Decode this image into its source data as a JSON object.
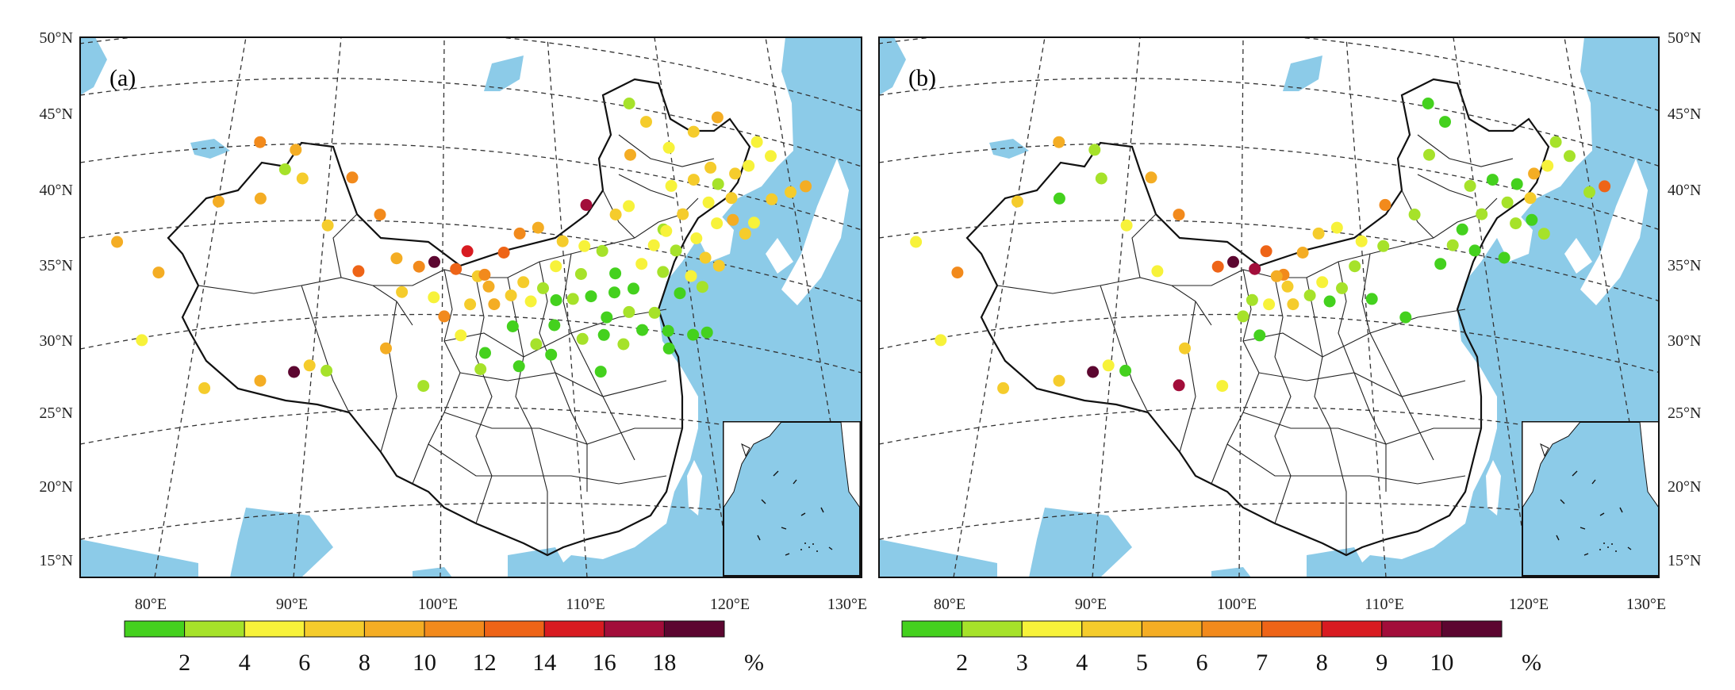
{
  "panels": [
    {
      "label": "(a)",
      "lat_labels_side": "left",
      "colorbar": {
        "colors": [
          "#44d11e",
          "#a6e22a",
          "#f7f23a",
          "#f5cc2c",
          "#f4ad24",
          "#f28a1c",
          "#ee6417",
          "#d81b21",
          "#a20d3a",
          "#5c0630"
        ],
        "tick_labels": [
          "2",
          "4",
          "6",
          "8",
          "10",
          "12",
          "14",
          "16",
          "18"
        ],
        "unit": "%"
      }
    },
    {
      "label": "(b)",
      "lat_labels_side": "right",
      "colorbar": {
        "colors": [
          "#44d11e",
          "#a6e22a",
          "#f7f23a",
          "#f5cc2c",
          "#f4ad24",
          "#f28a1c",
          "#ee6417",
          "#d81b21",
          "#a20d3a",
          "#5c0630"
        ],
        "tick_labels": [
          "2",
          "3",
          "4",
          "5",
          "6",
          "7",
          "8",
          "9",
          "10"
        ],
        "unit": "%"
      }
    }
  ],
  "axes": {
    "lat_labels": [
      "50°N",
      "45°N",
      "40°N",
      "35°N",
      "30°N",
      "25°N",
      "20°N",
      "15°N"
    ],
    "lon_labels": [
      "80°E",
      "90°E",
      "100°E",
      "110°E",
      "120°E",
      "130°E"
    ]
  },
  "colors": {
    "sea": "#8ccbe8",
    "land": "#ffffff",
    "border": "#111111",
    "grid": "#333333"
  },
  "chart_data": [
    {
      "type": "scatter",
      "note_units": "lon °E, lat °N, class index 0-9 on colorbar",
      "points": [
        {
          "lon": 116.3,
          "lat": 47.8,
          "c": 1
        },
        {
          "lon": 117.5,
          "lat": 46.6,
          "c": 3
        },
        {
          "lon": 115.7,
          "lat": 44.3,
          "c": 4
        },
        {
          "lon": 118.6,
          "lat": 42.3,
          "c": 2
        },
        {
          "lon": 120.5,
          "lat": 42.8,
          "c": 3
        },
        {
          "lon": 122.4,
          "lat": 42.6,
          "c": 1
        },
        {
          "lon": 124.0,
          "lat": 43.4,
          "c": 3
        },
        {
          "lon": 121.3,
          "lat": 41.3,
          "c": 2
        },
        {
          "lon": 123.2,
          "lat": 41.7,
          "c": 3
        },
        {
          "lon": 119.1,
          "lat": 40.4,
          "c": 3
        },
        {
          "lon": 117.4,
          "lat": 39.3,
          "c": 1
        },
        {
          "lon": 119.8,
          "lat": 38.8,
          "c": 2
        },
        {
          "lon": 121.6,
          "lat": 39.9,
          "c": 2
        },
        {
          "lon": 122.9,
          "lat": 40.2,
          "c": 4
        },
        {
          "lon": 123.6,
          "lat": 39.3,
          "c": 3
        },
        {
          "lon": 120.2,
          "lat": 37.5,
          "c": 3
        },
        {
          "lon": 118.1,
          "lat": 37.9,
          "c": 1
        },
        {
          "lon": 116.5,
          "lat": 38.2,
          "c": 2
        },
        {
          "lon": 121.1,
          "lat": 37.0,
          "c": 3
        },
        {
          "lon": 118.9,
          "lat": 36.2,
          "c": 2
        },
        {
          "lon": 116.9,
          "lat": 36.4,
          "c": 1
        },
        {
          "lon": 115.4,
          "lat": 36.9,
          "c": 2
        },
        {
          "lon": 117.9,
          "lat": 35.0,
          "c": 0
        },
        {
          "lon": 119.6,
          "lat": 35.5,
          "c": 1
        },
        {
          "lon": 114.6,
          "lat": 35.2,
          "c": 0
        },
        {
          "lon": 113.2,
          "lat": 34.9,
          "c": 0
        },
        {
          "lon": 115.9,
          "lat": 33.6,
          "c": 1
        },
        {
          "lon": 116.7,
          "lat": 32.4,
          "c": 0
        },
        {
          "lon": 114.1,
          "lat": 33.6,
          "c": 1
        },
        {
          "lon": 112.5,
          "lat": 33.2,
          "c": 0
        },
        {
          "lon": 111.5,
          "lat": 34.6,
          "c": 0
        },
        {
          "lon": 110.2,
          "lat": 34.4,
          "c": 1
        },
        {
          "lon": 109.0,
          "lat": 34.3,
          "c": 0
        },
        {
          "lon": 107.2,
          "lat": 34.2,
          "c": 2
        },
        {
          "lon": 105.8,
          "lat": 34.6,
          "c": 3
        },
        {
          "lon": 104.2,
          "lat": 35.2,
          "c": 4
        },
        {
          "lon": 103.4,
          "lat": 35.9,
          "c": 3
        },
        {
          "lon": 101.8,
          "lat": 36.4,
          "c": 6
        },
        {
          "lon": 100.2,
          "lat": 36.9,
          "c": 9
        },
        {
          "lon": 102.6,
          "lat": 37.6,
          "c": 7
        },
        {
          "lon": 103.9,
          "lat": 36.0,
          "c": 5
        },
        {
          "lon": 105.3,
          "lat": 37.5,
          "c": 6
        },
        {
          "lon": 106.5,
          "lat": 38.8,
          "c": 5
        },
        {
          "lon": 107.9,
          "lat": 39.2,
          "c": 4
        },
        {
          "lon": 109.7,
          "lat": 38.3,
          "c": 3
        },
        {
          "lon": 111.3,
          "lat": 38.0,
          "c": 2
        },
        {
          "lon": 112.6,
          "lat": 37.7,
          "c": 1
        },
        {
          "lon": 113.4,
          "lat": 36.2,
          "c": 0
        },
        {
          "lon": 110.9,
          "lat": 36.1,
          "c": 1
        },
        {
          "lon": 109.1,
          "lat": 36.6,
          "c": 2
        },
        {
          "lon": 108.1,
          "lat": 35.1,
          "c": 1
        },
        {
          "lon": 106.7,
          "lat": 35.5,
          "c": 3
        },
        {
          "lon": 104.6,
          "lat": 34.0,
          "c": 4
        },
        {
          "lon": 102.9,
          "lat": 34.0,
          "c": 3
        },
        {
          "lon": 101.1,
          "lat": 33.2,
          "c": 5
        },
        {
          "lon": 100.3,
          "lat": 34.5,
          "c": 2
        },
        {
          "lon": 99.1,
          "lat": 36.6,
          "c": 5
        },
        {
          "lon": 98.0,
          "lat": 34.9,
          "c": 3
        },
        {
          "lon": 97.4,
          "lat": 37.2,
          "c": 4
        },
        {
          "lon": 95.8,
          "lat": 40.2,
          "c": 5
        },
        {
          "lon": 94.7,
          "lat": 36.4,
          "c": 6
        },
        {
          "lon": 93.2,
          "lat": 42.8,
          "c": 5
        },
        {
          "lon": 91.9,
          "lat": 39.6,
          "c": 3
        },
        {
          "lon": 89.2,
          "lat": 42.9,
          "c": 3
        },
        {
          "lon": 88.1,
          "lat": 44.9,
          "c": 4
        },
        {
          "lon": 86.2,
          "lat": 41.7,
          "c": 4
        },
        {
          "lon": 84.9,
          "lat": 45.6,
          "c": 5
        },
        {
          "lon": 87.6,
          "lat": 43.6,
          "c": 1
        },
        {
          "lon": 82.9,
          "lat": 41.7,
          "c": 4
        },
        {
          "lon": 79.9,
          "lat": 37.1,
          "c": 4
        },
        {
          "lon": 75.9,
          "lat": 39.5,
          "c": 4
        },
        {
          "lon": 80.1,
          "lat": 32.5,
          "c": 2
        },
        {
          "lon": 85.2,
          "lat": 28.9,
          "c": 3
        },
        {
          "lon": 88.9,
          "lat": 29.2,
          "c": 4
        },
        {
          "lon": 91.1,
          "lat": 29.7,
          "c": 9
        },
        {
          "lon": 92.1,
          "lat": 30.1,
          "c": 3
        },
        {
          "lon": 93.3,
          "lat": 29.7,
          "c": 1
        },
        {
          "lon": 97.2,
          "lat": 31.1,
          "c": 4
        },
        {
          "lon": 99.9,
          "lat": 28.5,
          "c": 1
        },
        {
          "lon": 102.3,
          "lat": 31.9,
          "c": 2
        },
        {
          "lon": 104.0,
          "lat": 30.7,
          "c": 0
        },
        {
          "lon": 105.9,
          "lat": 32.5,
          "c": 0
        },
        {
          "lon": 107.5,
          "lat": 31.3,
          "c": 1
        },
        {
          "lon": 108.8,
          "lat": 32.6,
          "c": 0
        },
        {
          "lon": 110.7,
          "lat": 31.7,
          "c": 1
        },
        {
          "lon": 112.2,
          "lat": 32.0,
          "c": 0
        },
        {
          "lon": 113.5,
          "lat": 31.4,
          "c": 1
        },
        {
          "lon": 114.9,
          "lat": 32.4,
          "c": 0
        },
        {
          "lon": 116.6,
          "lat": 31.2,
          "c": 0
        },
        {
          "lon": 118.4,
          "lat": 32.2,
          "c": 0
        },
        {
          "lon": 119.4,
          "lat": 32.4,
          "c": 0
        },
        {
          "lon": 111.8,
          "lat": 29.5,
          "c": 0
        },
        {
          "lon": 117.6,
          "lat": 39.2,
          "c": 2
        },
        {
          "lon": 108.5,
          "lat": 30.6,
          "c": 0
        },
        {
          "lon": 106.3,
          "lat": 29.8,
          "c": 0
        },
        {
          "lon": 103.7,
          "lat": 29.6,
          "c": 1
        },
        {
          "lon": 119.0,
          "lat": 44.9,
          "c": 2
        },
        {
          "lon": 121.4,
          "lat": 46.1,
          "c": 3
        },
        {
          "lon": 125.3,
          "lat": 44.0,
          "c": 2
        },
        {
          "lon": 126.6,
          "lat": 45.7,
          "c": 2
        },
        {
          "lon": 124.5,
          "lat": 40.1,
          "c": 2
        },
        {
          "lon": 126.4,
          "lat": 41.8,
          "c": 3
        },
        {
          "lon": 122.1,
          "lat": 43.7,
          "c": 3
        },
        {
          "lon": 111.7,
          "lat": 40.8,
          "c": 8
        },
        {
          "lon": 123.8,
          "lat": 47.2,
          "c": 4
        },
        {
          "lon": 127.4,
          "lat": 44.8,
          "c": 2
        },
        {
          "lon": 128.1,
          "lat": 42.4,
          "c": 3
        },
        {
          "lon": 129.5,
          "lat": 42.9,
          "c": 4
        },
        {
          "lon": 113.9,
          "lat": 40.2,
          "c": 3
        },
        {
          "lon": 115.0,
          "lat": 40.8,
          "c": 2
        }
      ]
    },
    {
      "type": "scatter",
      "note_units": "lon °E, lat °N, class index 0-9 on colorbar",
      "points": [
        {
          "lon": 117.5,
          "lat": 46.6,
          "c": 0
        },
        {
          "lon": 116.3,
          "lat": 47.8,
          "c": 0
        },
        {
          "lon": 115.7,
          "lat": 44.3,
          "c": 1
        },
        {
          "lon": 118.6,
          "lat": 42.3,
          "c": 1
        },
        {
          "lon": 120.5,
          "lat": 42.8,
          "c": 0
        },
        {
          "lon": 122.4,
          "lat": 42.6,
          "c": 0
        },
        {
          "lon": 124.0,
          "lat": 43.4,
          "c": 4
        },
        {
          "lon": 125.3,
          "lat": 44.0,
          "c": 2
        },
        {
          "lon": 126.6,
          "lat": 45.7,
          "c": 1
        },
        {
          "lon": 127.4,
          "lat": 44.8,
          "c": 1
        },
        {
          "lon": 128.1,
          "lat": 42.4,
          "c": 1
        },
        {
          "lon": 129.5,
          "lat": 42.9,
          "c": 6
        },
        {
          "lon": 121.3,
          "lat": 41.3,
          "c": 1
        },
        {
          "lon": 123.2,
          "lat": 41.7,
          "c": 3
        },
        {
          "lon": 119.1,
          "lat": 40.4,
          "c": 1
        },
        {
          "lon": 117.4,
          "lat": 39.3,
          "c": 0
        },
        {
          "lon": 121.6,
          "lat": 39.9,
          "c": 1
        },
        {
          "lon": 122.9,
          "lat": 40.2,
          "c": 0
        },
        {
          "lon": 123.6,
          "lat": 39.3,
          "c": 1
        },
        {
          "lon": 120.2,
          "lat": 37.5,
          "c": 0
        },
        {
          "lon": 118.1,
          "lat": 37.9,
          "c": 0
        },
        {
          "lon": 116.5,
          "lat": 38.2,
          "c": 1
        },
        {
          "lon": 115.4,
          "lat": 36.9,
          "c": 0
        },
        {
          "lon": 113.9,
          "lat": 40.2,
          "c": 1
        },
        {
          "lon": 111.7,
          "lat": 40.8,
          "c": 5
        },
        {
          "lon": 111.3,
          "lat": 38.0,
          "c": 1
        },
        {
          "lon": 109.7,
          "lat": 38.3,
          "c": 2
        },
        {
          "lon": 107.9,
          "lat": 39.2,
          "c": 2
        },
        {
          "lon": 106.5,
          "lat": 38.8,
          "c": 3
        },
        {
          "lon": 105.3,
          "lat": 37.5,
          "c": 4
        },
        {
          "lon": 104.2,
          "lat": 35.2,
          "c": 3
        },
        {
          "lon": 103.9,
          "lat": 36.0,
          "c": 5
        },
        {
          "lon": 103.4,
          "lat": 35.9,
          "c": 4
        },
        {
          "lon": 102.6,
          "lat": 37.6,
          "c": 6
        },
        {
          "lon": 101.8,
          "lat": 36.4,
          "c": 8
        },
        {
          "lon": 100.2,
          "lat": 36.9,
          "c": 9
        },
        {
          "lon": 99.1,
          "lat": 36.6,
          "c": 6
        },
        {
          "lon": 102.9,
          "lat": 34.0,
          "c": 2
        },
        {
          "lon": 101.1,
          "lat": 33.2,
          "c": 1
        },
        {
          "lon": 101.7,
          "lat": 34.3,
          "c": 1
        },
        {
          "lon": 104.6,
          "lat": 34.0,
          "c": 3
        },
        {
          "lon": 105.8,
          "lat": 34.6,
          "c": 1
        },
        {
          "lon": 106.7,
          "lat": 35.5,
          "c": 2
        },
        {
          "lon": 108.1,
          "lat": 35.1,
          "c": 1
        },
        {
          "lon": 109.1,
          "lat": 36.6,
          "c": 1
        },
        {
          "lon": 110.2,
          "lat": 34.4,
          "c": 0
        },
        {
          "lon": 112.5,
          "lat": 33.2,
          "c": 0
        },
        {
          "lon": 107.2,
          "lat": 34.2,
          "c": 0
        },
        {
          "lon": 102.3,
          "lat": 31.9,
          "c": 0
        },
        {
          "lon": 97.2,
          "lat": 31.1,
          "c": 3
        },
        {
          "lon": 95.8,
          "lat": 40.2,
          "c": 5
        },
        {
          "lon": 94.7,
          "lat": 36.4,
          "c": 2
        },
        {
          "lon": 93.2,
          "lat": 42.8,
          "c": 4
        },
        {
          "lon": 91.9,
          "lat": 39.6,
          "c": 2
        },
        {
          "lon": 89.2,
          "lat": 42.9,
          "c": 1
        },
        {
          "lon": 88.1,
          "lat": 44.9,
          "c": 1
        },
        {
          "lon": 86.2,
          "lat": 41.7,
          "c": 0
        },
        {
          "lon": 84.9,
          "lat": 45.6,
          "c": 4
        },
        {
          "lon": 82.9,
          "lat": 41.7,
          "c": 3
        },
        {
          "lon": 79.9,
          "lat": 37.1,
          "c": 5
        },
        {
          "lon": 75.9,
          "lat": 39.5,
          "c": 2
        },
        {
          "lon": 80.1,
          "lat": 32.5,
          "c": 2
        },
        {
          "lon": 85.2,
          "lat": 28.9,
          "c": 3
        },
        {
          "lon": 88.9,
          "lat": 29.2,
          "c": 3
        },
        {
          "lon": 91.1,
          "lat": 29.7,
          "c": 9
        },
        {
          "lon": 92.1,
          "lat": 30.1,
          "c": 2
        },
        {
          "lon": 93.3,
          "lat": 29.7,
          "c": 0
        },
        {
          "lon": 97.0,
          "lat": 28.6,
          "c": 8
        },
        {
          "lon": 99.9,
          "lat": 28.5,
          "c": 2
        }
      ]
    }
  ]
}
